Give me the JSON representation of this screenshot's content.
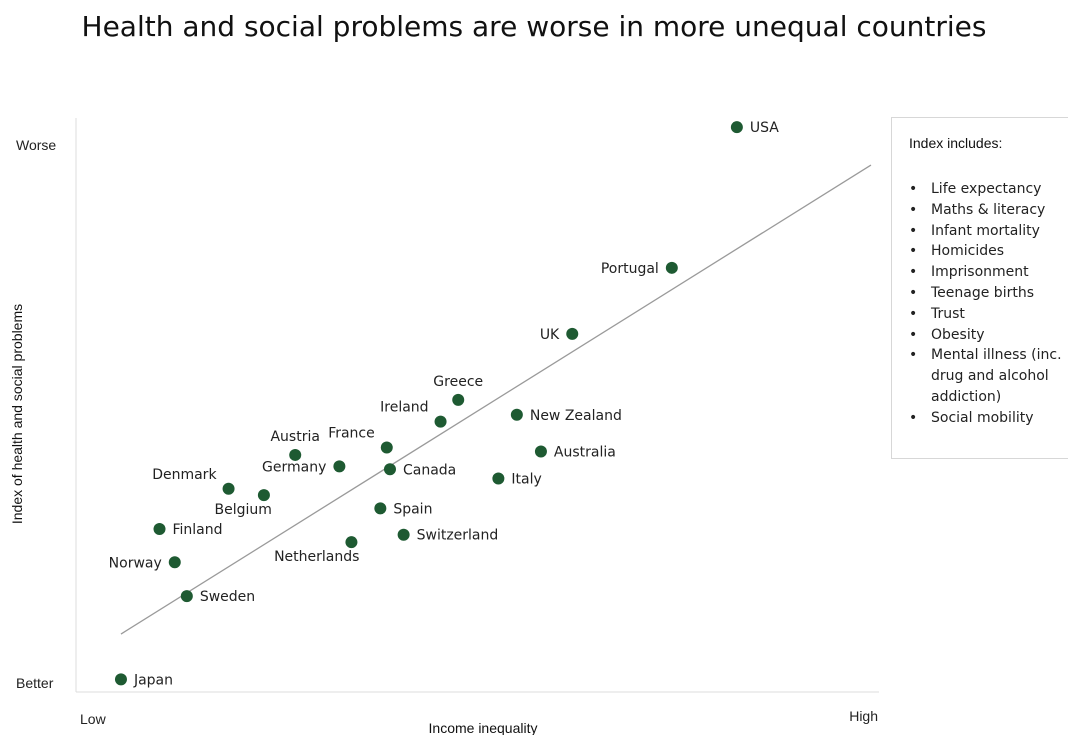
{
  "chart_data": {
    "type": "scatter",
    "title": "Health and social problems are worse in more unequal countries",
    "xlabel": "Income inequality",
    "ylabel": "Index of health and social problems",
    "x_tick_labels": {
      "low": "Low",
      "high": "High"
    },
    "y_tick_labels": {
      "high": "Worse",
      "low": "Better"
    },
    "xlim": [
      0,
      100
    ],
    "ylim": [
      0,
      100
    ],
    "points": [
      {
        "label": "USA",
        "x": 82.3,
        "y": 98.4
      },
      {
        "label": "Portugal",
        "x": 74.2,
        "y": 73.9
      },
      {
        "label": "UK",
        "x": 61.8,
        "y": 62.4
      },
      {
        "label": "Greece",
        "x": 47.6,
        "y": 50.9
      },
      {
        "label": "New Zealand",
        "x": 54.9,
        "y": 48.3
      },
      {
        "label": "Ireland",
        "x": 45.4,
        "y": 47.1
      },
      {
        "label": "France",
        "x": 38.7,
        "y": 42.6
      },
      {
        "label": "Australia",
        "x": 57.9,
        "y": 41.9
      },
      {
        "label": "Austria",
        "x": 27.3,
        "y": 41.3
      },
      {
        "label": "Germany",
        "x": 32.8,
        "y": 39.3
      },
      {
        "label": "Canada",
        "x": 39.1,
        "y": 38.8
      },
      {
        "label": "Italy",
        "x": 52.6,
        "y": 37.2
      },
      {
        "label": "Denmark",
        "x": 19.0,
        "y": 35.4
      },
      {
        "label": "Belgium",
        "x": 23.4,
        "y": 34.3
      },
      {
        "label": "Spain",
        "x": 37.9,
        "y": 32.0
      },
      {
        "label": "Finland",
        "x": 10.4,
        "y": 28.4
      },
      {
        "label": "Switzerland",
        "x": 40.8,
        "y": 27.4
      },
      {
        "label": "Netherlands",
        "x": 34.3,
        "y": 26.1
      },
      {
        "label": "Norway",
        "x": 12.3,
        "y": 22.6
      },
      {
        "label": "Sweden",
        "x": 13.8,
        "y": 16.7
      },
      {
        "label": "Japan",
        "x": 5.6,
        "y": 2.2
      }
    ],
    "trendline": {
      "x": [
        5.6,
        99.0
      ],
      "y": [
        10.1,
        91.8
      ]
    },
    "point_color": "#1e5a32",
    "trendline_color": "#9a9a9a",
    "grid": false,
    "legend": "none"
  },
  "index_box": {
    "title": "Index includes:",
    "items": [
      "Life expectancy",
      "Maths & literacy",
      "Infant mortality",
      "Homicides",
      "Imprisonment",
      "Teenage births",
      "Trust",
      "Obesity",
      "Mental illness (inc. drug and alcohol addiction)",
      "Social mobility"
    ]
  }
}
